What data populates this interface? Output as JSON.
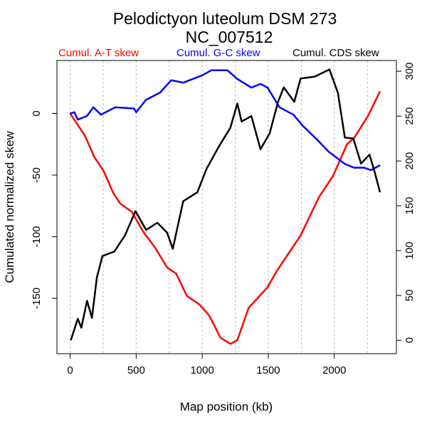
{
  "chart_data": {
    "type": "line",
    "title": "Pelodictyon luteolum DSM 273",
    "subtitle": "NC_007512",
    "xlabel": "Map position (kb)",
    "ylabel": "Cumulated normalized skew",
    "xlim": [
      -100,
      2470
    ],
    "ylim_left": [
      -195,
      43
    ],
    "ylim_right": [
      -15,
      312
    ],
    "x_ticks": [
      "0",
      "500",
      "1000",
      "1500",
      "2000"
    ],
    "y_left_ticks": [
      "0",
      "-50",
      "-100",
      "-150"
    ],
    "y_right_ticks": [
      "0",
      "50",
      "100",
      "150",
      "200",
      "250",
      "300"
    ],
    "grid": "vertical dotted lines every 250 kb",
    "legend_placement": "top, above plot",
    "series": [
      {
        "name": "Cumul. A-T skew",
        "color": "#ff0000",
        "axis": "left",
        "x": [
          0,
          112,
          181,
          255,
          324,
          378,
          468,
          553,
          644,
          734,
          803,
          883,
          979,
          1053,
          1138,
          1213,
          1266,
          1351,
          1495,
          1564,
          1745,
          1883,
          1989,
          2096,
          2149,
          2255,
          2346
        ],
        "y": [
          0,
          -18,
          -35,
          -47,
          -64,
          -73,
          -80,
          -96,
          -109,
          -125,
          -130,
          -148,
          -155,
          -164,
          -182,
          -187,
          -184,
          -158,
          -141,
          -128,
          -99,
          -68,
          -51,
          -25,
          -20,
          -2,
          18
        ]
      },
      {
        "name": "Cumul. G-C skew",
        "color": "#0000ff",
        "axis": "left",
        "x": [
          0,
          32,
          58,
          128,
          176,
          234,
          340,
          484,
          500,
          574,
          681,
          766,
          856,
          1000,
          1069,
          1191,
          1266,
          1372,
          1441,
          1495,
          1585,
          1691,
          1761,
          1867,
          1957,
          2080,
          2149,
          2223,
          2277,
          2346
        ],
        "y": [
          0,
          1,
          -5,
          -2,
          5,
          -1,
          5,
          4,
          1,
          11,
          17,
          27,
          25,
          31,
          35,
          35,
          28,
          21,
          24,
          21,
          5,
          -1,
          -10,
          -21,
          -31,
          -41,
          -44,
          -44,
          -46,
          -42
        ]
      },
      {
        "name": "Cumul. CDS skew",
        "color": "#000000",
        "axis": "right",
        "x": [
          5,
          58,
          85,
          128,
          165,
          202,
          245,
          335,
          415,
          495,
          575,
          660,
          734,
          777,
          856,
          963,
          1032,
          1122,
          1213,
          1266,
          1298,
          1372,
          1441,
          1511,
          1574,
          1617,
          1697,
          1745,
          1851,
          1963,
          2027,
          2080,
          2144,
          2202,
          2266,
          2303,
          2346
        ],
        "y": [
          0,
          24,
          14,
          44,
          25,
          70,
          94,
          99,
          117,
          144,
          123,
          131,
          120,
          102,
          155,
          165,
          191,
          215,
          237,
          264,
          244,
          250,
          213,
          231,
          266,
          282,
          266,
          292,
          294,
          302,
          276,
          226,
          225,
          197,
          207,
          189,
          165
        ]
      }
    ]
  }
}
